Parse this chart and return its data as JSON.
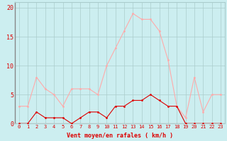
{
  "x": [
    0,
    1,
    2,
    3,
    4,
    5,
    6,
    7,
    8,
    9,
    10,
    11,
    12,
    13,
    14,
    15,
    16,
    17,
    18,
    19,
    20,
    21,
    22,
    23
  ],
  "wind_avg": [
    0,
    0,
    2,
    1,
    1,
    1,
    0,
    1,
    2,
    2,
    1,
    3,
    3,
    4,
    4,
    5,
    4,
    3,
    3,
    0,
    0,
    0,
    0,
    0
  ],
  "wind_gust": [
    3,
    3,
    8,
    6,
    5,
    3,
    6,
    6,
    6,
    5,
    10,
    13,
    16,
    19,
    18,
    18,
    16,
    11,
    3,
    1,
    8,
    2,
    5,
    5
  ],
  "avg_color": "#dd0000",
  "gust_color": "#ffaaaa",
  "bg_color": "#cceef0",
  "grid_color": "#aacccc",
  "xlabel": "Vent moyen/en rafales ( km/h )",
  "ylabel_ticks": [
    0,
    5,
    10,
    15,
    20
  ],
  "ylim": [
    0,
    21
  ],
  "xlim": [
    -0.5,
    23.5
  ],
  "tick_fontsize": 5,
  "label_fontsize": 6,
  "tick_color": "#dd0000",
  "label_color": "#dd0000",
  "line_width": 0.8,
  "marker_size": 2.0
}
